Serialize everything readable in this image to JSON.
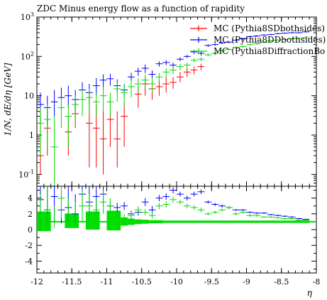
{
  "chart_data": {
    "type": "scatter",
    "title": "ZDC Minus energy flow as a function of rapidity",
    "xlabel": "η",
    "ylabel": "1/N, dE/dη [GeV]",
    "xlim": [
      -12,
      -8
    ],
    "upper_ylim": [
      0.05,
      1000
    ],
    "upper_yscale": "log",
    "lower_ylim": [
      -5.5,
      5.5
    ],
    "x_tick_labels": [
      "-12",
      "-11.5",
      "-11",
      "-10.5",
      "-10",
      "-9.5",
      "-9",
      "-8.5",
      "-8"
    ],
    "upper_y_tick_labels": [
      "10^-1",
      "1",
      "10",
      "10^2",
      "10^3"
    ],
    "lower_y_tick_labels": [
      "-4",
      "-2",
      "0",
      "2",
      "4"
    ],
    "legend_position": "top-right",
    "series": [
      {
        "name": "MC (Pythia8SDbothsides)",
        "color": "#ff0000",
        "x": [
          -11.95,
          -11.85,
          -11.55,
          -11.45,
          -11.25,
          -11.15,
          -11.05,
          -10.95,
          -10.85,
          -10.75,
          -10.55,
          -10.45,
          -10.35,
          -10.25,
          -10.15,
          -10.05,
          -9.95,
          -9.85,
          -9.75,
          -9.65
        ],
        "y": [
          0.3,
          1.5,
          1.2,
          3.5,
          2.0,
          1.5,
          0.8,
          2.5,
          0.8,
          3.0,
          11,
          20,
          15,
          17,
          20,
          22,
          30,
          40,
          45,
          55
        ],
        "ylo": [
          0.1,
          0.3,
          0.3,
          1.5,
          0.15,
          0.15,
          0.1,
          0.5,
          0.15,
          0.5,
          5,
          10,
          8,
          10,
          12,
          15,
          22,
          30,
          35,
          45
        ],
        "yhi": [
          3,
          4,
          3,
          8,
          10,
          6,
          4,
          8,
          4,
          7,
          18,
          30,
          25,
          25,
          30,
          30,
          40,
          50,
          55,
          65
        ],
        "ratio": [],
        "ratio_lo": [],
        "ratio_hi": []
      },
      {
        "name": "MC (Pythia8DDbothsides)",
        "color": "#0000ff",
        "x": [
          -11.95,
          -11.85,
          -11.75,
          -11.65,
          -11.55,
          -11.45,
          -11.35,
          -11.25,
          -11.15,
          -11.05,
          -10.95,
          -10.85,
          -10.75,
          -10.65,
          -10.55,
          -10.45,
          -10.35,
          -10.25,
          -10.15,
          -10.05,
          -9.95,
          -9.85,
          -9.75,
          -9.65,
          -9.55,
          -9.45,
          -9.35,
          -9.25,
          -9.15,
          -9.05,
          -8.95,
          -8.85,
          -8.75,
          -8.65,
          -8.55,
          -8.45,
          -8.35,
          -8.25,
          -8.15
        ],
        "y": [
          6,
          5,
          7,
          9,
          10,
          8,
          14,
          12,
          18,
          25,
          27,
          18,
          14,
          30,
          42,
          50,
          35,
          65,
          70,
          60,
          85,
          100,
          130,
          120,
          190,
          200,
          220,
          230,
          260,
          280,
          320,
          330,
          350,
          360,
          380,
          390,
          400,
          400,
          420
        ],
        "ylo": [
          2,
          1.8,
          3,
          4,
          5,
          4,
          8,
          6,
          10,
          15,
          18,
          12,
          9,
          22,
          32,
          38,
          28,
          55,
          60,
          50,
          75,
          90,
          115,
          105,
          175,
          185,
          205,
          215,
          245,
          265,
          305,
          315,
          335,
          345,
          365,
          375,
          385,
          385,
          405
        ],
        "yhi": [
          12,
          10,
          14,
          16,
          18,
          14,
          22,
          20,
          28,
          35,
          36,
          26,
          20,
          38,
          52,
          62,
          44,
          75,
          80,
          70,
          95,
          110,
          145,
          135,
          205,
          215,
          235,
          245,
          275,
          295,
          335,
          345,
          365,
          375,
          395,
          405,
          415,
          415,
          435
        ],
        "ratio": [
          3.8,
          2.5,
          4.2,
          2.5,
          2.8,
          2.0,
          4.5,
          3.5,
          4.2,
          4.5,
          3.0,
          2.8,
          3.0,
          2.0,
          2.2,
          3.5,
          2.5,
          4.0,
          4.2,
          5.0,
          4.5,
          4.0,
          4.5,
          4.8,
          3.5,
          3.2,
          3.0,
          2.8,
          2.5,
          2.5,
          2.2,
          2.1,
          2.1,
          1.9,
          1.8,
          1.7,
          1.6,
          1.4,
          1.3
        ],
        "ratio_lo": [
          0.5,
          0.8,
          1.0,
          0.8,
          1.0,
          0.8,
          2.0,
          1.5,
          2.0,
          3.0,
          2.5,
          2.2,
          2.5,
          1.6,
          1.8,
          3.0,
          2.0,
          3.6,
          3.8,
          4.6,
          4.2,
          3.7,
          4.2,
          4.5,
          3.3,
          3.0,
          2.8,
          2.6,
          2.4,
          2.4,
          2.1,
          2.0,
          2.0,
          1.8,
          1.7,
          1.6,
          1.5,
          1.3,
          1.2
        ],
        "ratio_hi": [
          5.5,
          5.5,
          5.5,
          5.0,
          5.5,
          4.5,
          5.5,
          5.5,
          5.5,
          5.5,
          3.5,
          3.4,
          3.5,
          2.4,
          2.6,
          4.0,
          3.0,
          4.4,
          4.6,
          5.4,
          4.8,
          4.3,
          4.8,
          5.1,
          3.7,
          3.4,
          3.2,
          3.0,
          2.6,
          2.6,
          2.3,
          2.2,
          2.2,
          2.0,
          1.9,
          1.8,
          1.7,
          1.5,
          1.4
        ]
      },
      {
        "name": "MC (Pythia8DiffractionBo",
        "color": "#00dd00",
        "x": [
          -11.95,
          -11.85,
          -11.75,
          -11.65,
          -11.55,
          -11.45,
          -11.35,
          -11.25,
          -11.15,
          -11.05,
          -10.95,
          -10.85,
          -10.75,
          -10.65,
          -10.55,
          -10.45,
          -10.35,
          -10.25,
          -10.15,
          -10.05,
          -9.95,
          -9.85,
          -9.75,
          -9.65,
          -9.55,
          -9.45,
          -9.35,
          -9.25,
          -9.15,
          -9.05,
          -8.95,
          -8.85,
          -8.75,
          -8.65,
          -8.55,
          -8.45,
          -8.35,
          -8.25,
          -8.15
        ],
        "y": [
          2,
          2.5,
          0.5,
          5,
          3,
          6,
          8,
          9,
          7,
          10,
          7,
          15,
          12,
          17,
          20,
          25,
          20,
          30,
          40,
          45,
          55,
          60,
          80,
          85,
          110,
          120,
          140,
          150,
          170,
          180,
          200,
          210,
          230,
          250,
          260,
          270,
          280,
          290,
          300
        ],
        "ylo": [
          0.3,
          0.5,
          0.05,
          1.5,
          0.5,
          2,
          3,
          3.5,
          3,
          4,
          3,
          7,
          5,
          9,
          12,
          15,
          12,
          22,
          30,
          35,
          45,
          50,
          70,
          75,
          100,
          108,
          128,
          138,
          158,
          168,
          188,
          198,
          218,
          238,
          248,
          258,
          268,
          278,
          288
        ],
        "yhi": [
          5,
          6,
          3,
          9,
          6,
          10,
          14,
          15,
          12,
          17,
          12,
          22,
          20,
          25,
          28,
          35,
          28,
          38,
          50,
          55,
          65,
          70,
          90,
          95,
          120,
          132,
          152,
          162,
          182,
          192,
          212,
          222,
          242,
          262,
          272,
          282,
          292,
          302,
          312
        ],
        "ratio": [
          2.2,
          2.5,
          1.0,
          4.0,
          2.0,
          1.5,
          3.0,
          3.0,
          2.5,
          3.5,
          3.0,
          1.8,
          1.5,
          1.8,
          2.5,
          2.2,
          1.8,
          3.0,
          3.2,
          3.8,
          3.5,
          3.0,
          2.8,
          2.5,
          2.0,
          2.2,
          2.5,
          2.8,
          2.0,
          2.2,
          1.8,
          1.8,
          1.6,
          1.6,
          1.5,
          1.4,
          1.4,
          1.2,
          1.2
        ],
        "ratio_lo": [
          0.5,
          0.5,
          0.2,
          1.5,
          0.8,
          0.5,
          1.0,
          1.5,
          1.0,
          2.0,
          2.0,
          1.3,
          1.0,
          1.4,
          2.0,
          1.8,
          1.4,
          2.6,
          2.8,
          3.4,
          3.2,
          2.7,
          2.5,
          2.2,
          1.8,
          2.0,
          2.3,
          2.6,
          1.8,
          2.0,
          1.6,
          1.6,
          1.5,
          1.5,
          1.4,
          1.3,
          1.3,
          1.1,
          1.1
        ],
        "ratio_hi": [
          4.5,
          5.5,
          3.0,
          5.5,
          4.0,
          3.5,
          5.0,
          4.5,
          4.0,
          5.0,
          4.0,
          2.3,
          2.0,
          2.2,
          3.0,
          2.6,
          2.2,
          3.4,
          3.6,
          4.2,
          3.8,
          3.3,
          3.1,
          2.8,
          2.2,
          2.4,
          2.7,
          3.0,
          2.2,
          2.4,
          2.0,
          2.0,
          1.7,
          1.7,
          1.6,
          1.5,
          1.5,
          1.3,
          1.3
        ]
      }
    ],
    "ratio_reference": {
      "value": 1,
      "color": "#00dd00",
      "band_x": [
        -11.95,
        -11.85,
        -11.55,
        -11.45,
        -11.25,
        -11.15,
        -10.95,
        -10.85,
        -10.75,
        -10.65,
        -10.55,
        -10.45,
        -10.35,
        -10.25,
        -10.15,
        -10.05,
        -9.95,
        -9.85,
        -9.75,
        -9.65,
        -9.55,
        -9.45,
        -9.35,
        -9.25,
        -9.15,
        -9.05,
        -8.95,
        -8.85,
        -8.75,
        -8.65,
        -8.55,
        -8.45,
        -8.35,
        -8.25,
        -8.15
      ],
      "band_lo": [
        -0.2,
        -0.2,
        0.2,
        0.2,
        0.0,
        0.0,
        -0.1,
        -0.1,
        0.5,
        0.6,
        0.7,
        0.75,
        0.8,
        0.8,
        0.85,
        0.85,
        0.85,
        0.85,
        0.85,
        0.85,
        0.85,
        0.85,
        0.85,
        0.85,
        0.85,
        0.85,
        0.85,
        0.85,
        0.85,
        0.85,
        0.85,
        0.85,
        0.85,
        0.85,
        0.85
      ],
      "band_hi": [
        2.3,
        2.3,
        2.0,
        2.0,
        2.3,
        2.3,
        2.4,
        2.4,
        1.5,
        1.4,
        1.3,
        1.25,
        1.2,
        1.2,
        1.15,
        1.15,
        1.15,
        1.15,
        1.15,
        1.15,
        1.15,
        1.15,
        1.15,
        1.15,
        1.15,
        1.15,
        1.15,
        1.15,
        1.15,
        1.15,
        1.15,
        1.15,
        1.15,
        1.15,
        1.15
      ]
    }
  }
}
